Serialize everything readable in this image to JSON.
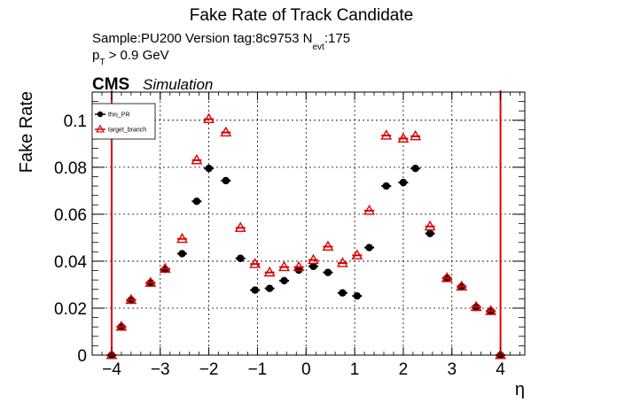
{
  "title": "Fake Rate of Track Candidate",
  "info_line": {
    "prefix": "Sample:PU200   Version tag:8c9753  N",
    "sub": "evt",
    "suffix": ":175"
  },
  "cut_line": {
    "prefix": "p",
    "sub": "T",
    "suffix": " > 0.9 GeV"
  },
  "experiment_label": "CMS",
  "experiment_sublabel": "Simulation",
  "chart_data": {
    "type": "scatter",
    "title": "Fake Rate of Track Candidate",
    "xlabel": "η",
    "ylabel": "Fake Rate",
    "xlim": [
      -4.4,
      4.5
    ],
    "ylim": [
      0,
      0.112
    ],
    "grid": true,
    "legend_position": "top-left",
    "x_ticks": [
      {
        "value": -4,
        "label": "−4"
      },
      {
        "value": -3,
        "label": "−3"
      },
      {
        "value": -2,
        "label": "−2"
      },
      {
        "value": -1,
        "label": "−1"
      },
      {
        "value": 0,
        "label": "0"
      },
      {
        "value": 1,
        "label": "1"
      },
      {
        "value": 2,
        "label": "2"
      },
      {
        "value": 3,
        "label": "3"
      },
      {
        "value": 4,
        "label": "4"
      }
    ],
    "y_ticks": [
      {
        "value": 0,
        "label": "0"
      },
      {
        "value": 0.02,
        "label": "0.02"
      },
      {
        "value": 0.04,
        "label": "0.04"
      },
      {
        "value": 0.06,
        "label": "0.06"
      },
      {
        "value": 0.08,
        "label": "0.08"
      },
      {
        "value": 0.1,
        "label": "0.1"
      }
    ],
    "vertical_lines": [
      {
        "x": -4,
        "color": "#e00000"
      },
      {
        "x": 4,
        "color": "#e00000"
      }
    ],
    "x_error": 0.1,
    "series": [
      {
        "name": "this_PR",
        "color": "#000000",
        "marker": "filled-circle",
        "x": [
          -4.0,
          -3.8,
          -3.6,
          -3.2,
          -2.9,
          -2.55,
          -2.25,
          -2.0,
          -1.65,
          -1.35,
          -1.05,
          -0.75,
          -0.45,
          -0.15,
          0.15,
          0.45,
          0.75,
          1.05,
          1.3,
          1.65,
          2.0,
          2.25,
          2.55,
          2.9,
          3.2,
          3.5,
          3.8,
          4.0
        ],
        "values": [
          0.0,
          0.0121,
          0.0235,
          0.0308,
          0.0365,
          0.0432,
          0.0655,
          0.0795,
          0.0743,
          0.0412,
          0.0277,
          0.0284,
          0.0317,
          0.0362,
          0.0378,
          0.0352,
          0.0265,
          0.0252,
          0.0458,
          0.072,
          0.0735,
          0.0795,
          0.0518,
          0.0328,
          0.0292,
          0.0205,
          0.0188,
          0.0
        ]
      },
      {
        "name": "target_branch",
        "color": "#e00000",
        "marker": "open-triangle",
        "x": [
          -4.0,
          -3.8,
          -3.6,
          -3.2,
          -2.9,
          -2.55,
          -2.25,
          -2.0,
          -1.65,
          -1.35,
          -1.05,
          -0.75,
          -0.45,
          -0.15,
          0.15,
          0.45,
          0.75,
          1.05,
          1.3,
          1.65,
          2.0,
          2.25,
          2.55,
          2.9,
          3.2,
          3.5,
          3.8,
          4.0
        ],
        "values": [
          0.0,
          0.0121,
          0.0235,
          0.0308,
          0.0368,
          0.0495,
          0.083,
          0.1005,
          0.0948,
          0.0542,
          0.0388,
          0.0352,
          0.0375,
          0.0375,
          0.0405,
          0.0462,
          0.0392,
          0.0425,
          0.0615,
          0.0935,
          0.0922,
          0.0932,
          0.0548,
          0.0328,
          0.0292,
          0.0205,
          0.0188,
          0.0
        ]
      }
    ]
  }
}
